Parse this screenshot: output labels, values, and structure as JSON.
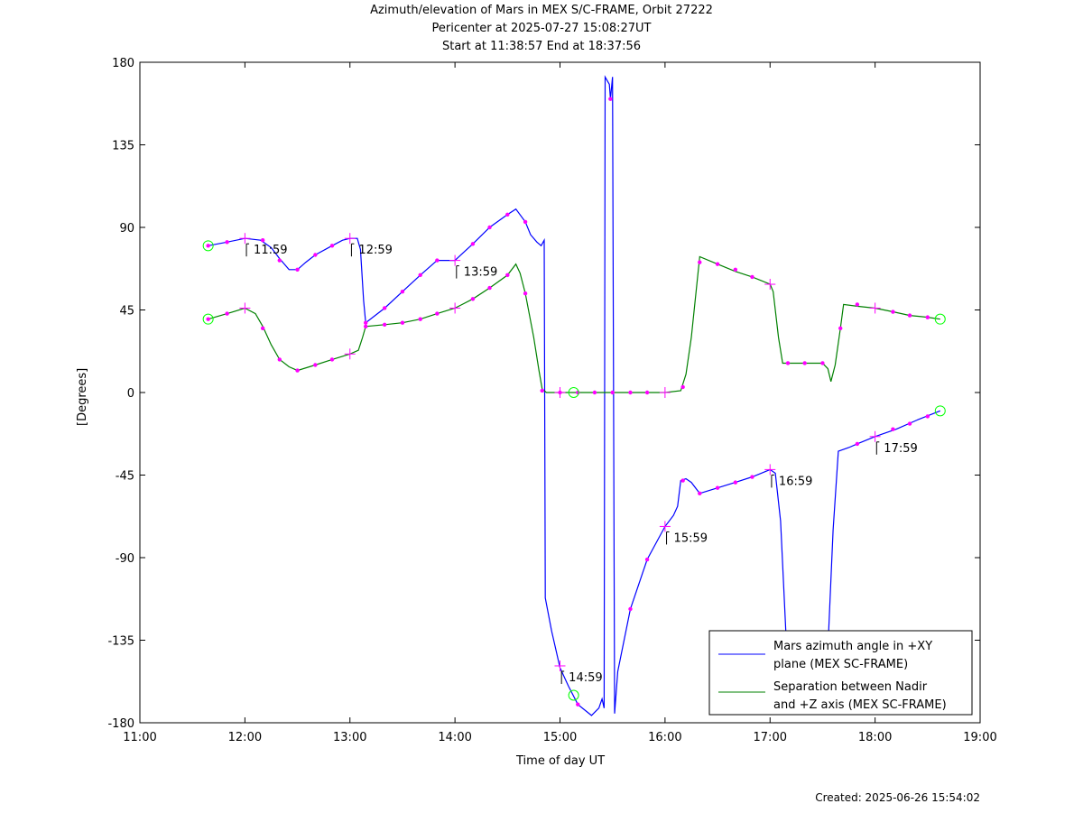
{
  "title": {
    "line1": "Azimuth/elevation of Mars in MEX S/C-FRAME,  Orbit 27222",
    "line2": "Pericenter at 2025-07-27 15:08:27UT",
    "line3": "Start at 11:38:57 End at 18:37:56"
  },
  "footer": {
    "created": "Created: 2025-06-26 15:54:02"
  },
  "chart_data": {
    "type": "line",
    "xlabel": "Time of day UT",
    "ylabel": "[Degrees]",
    "xlim": [
      11.0,
      19.0
    ],
    "ylim": [
      -180,
      180
    ],
    "x_ticks": [
      "11:00",
      "12:00",
      "13:00",
      "14:00",
      "15:00",
      "16:00",
      "17:00",
      "18:00",
      "19:00"
    ],
    "y_ticks": [
      "180",
      "135",
      "90",
      "45",
      "0",
      "-45",
      "-90",
      "-135",
      "-180"
    ],
    "grid": false,
    "legend_position": "bottom-right",
    "colors": {
      "azimuth": "#0000ff",
      "separation": "#008000",
      "marker": "#ff00ff",
      "circle": "#00ff00"
    },
    "series": [
      {
        "name": "Mars azimuth angle in +XY plane (MEX SC-FRAME)",
        "legend_lines": [
          "Mars azimuth angle in +XY",
          "plane (MEX SC-FRAME)"
        ],
        "color": "#0000ff",
        "points": [
          [
            11.65,
            80
          ],
          [
            11.83,
            82
          ],
          [
            12.0,
            84
          ],
          [
            12.15,
            83
          ],
          [
            12.25,
            79
          ],
          [
            12.33,
            73
          ],
          [
            12.42,
            67
          ],
          [
            12.5,
            67
          ],
          [
            12.58,
            71
          ],
          [
            12.67,
            75
          ],
          [
            12.83,
            80
          ],
          [
            12.93,
            83
          ],
          [
            13.0,
            84
          ],
          [
            13.07,
            84
          ],
          [
            13.1,
            78
          ],
          [
            13.13,
            50
          ],
          [
            13.15,
            38
          ],
          [
            13.33,
            46
          ],
          [
            13.5,
            55
          ],
          [
            13.67,
            64
          ],
          [
            13.83,
            72
          ],
          [
            14.0,
            72
          ],
          [
            14.17,
            81
          ],
          [
            14.33,
            90
          ],
          [
            14.5,
            97
          ],
          [
            14.58,
            100
          ],
          [
            14.67,
            93
          ],
          [
            14.72,
            86
          ],
          [
            14.78,
            82
          ],
          [
            14.82,
            80
          ],
          [
            14.85,
            83
          ],
          [
            14.86,
            -112
          ],
          [
            14.92,
            -130
          ],
          [
            15.0,
            -150
          ],
          [
            15.08,
            -160
          ],
          [
            15.17,
            -170
          ],
          [
            15.3,
            -176
          ],
          [
            15.37,
            -172
          ],
          [
            15.4,
            -167
          ],
          [
            15.42,
            -172
          ],
          [
            15.43,
            172
          ],
          [
            15.47,
            168
          ],
          [
            15.48,
            160
          ],
          [
            15.5,
            172
          ],
          [
            15.52,
            -175
          ],
          [
            15.55,
            -152
          ],
          [
            15.67,
            -118
          ],
          [
            15.83,
            -91
          ],
          [
            16.0,
            -73
          ],
          [
            16.08,
            -67
          ],
          [
            16.12,
            -62
          ],
          [
            16.15,
            -48
          ],
          [
            16.2,
            -47
          ],
          [
            16.25,
            -49
          ],
          [
            16.33,
            -55
          ],
          [
            16.5,
            -52
          ],
          [
            16.67,
            -49
          ],
          [
            16.83,
            -46
          ],
          [
            17.0,
            -42
          ],
          [
            17.05,
            -44
          ],
          [
            17.1,
            -70
          ],
          [
            17.15,
            -130
          ]
        ],
        "points2": [
          [
            17.55,
            -140
          ],
          [
            17.6,
            -75
          ],
          [
            17.65,
            -32
          ],
          [
            17.75,
            -30
          ],
          [
            17.83,
            -28
          ],
          [
            18.0,
            -24
          ],
          [
            18.2,
            -20
          ],
          [
            18.4,
            -15
          ],
          [
            18.62,
            -10
          ]
        ],
        "markers": [
          [
            11.65,
            80
          ],
          [
            11.83,
            82
          ],
          [
            12.17,
            83
          ],
          [
            12.33,
            72
          ],
          [
            12.5,
            67
          ],
          [
            12.67,
            75
          ],
          [
            12.83,
            80
          ],
          [
            13.15,
            38
          ],
          [
            13.33,
            46
          ],
          [
            13.5,
            55
          ],
          [
            13.67,
            64
          ],
          [
            13.83,
            72
          ],
          [
            14.17,
            81
          ],
          [
            14.33,
            90
          ],
          [
            14.5,
            97
          ],
          [
            14.67,
            93
          ],
          [
            15.17,
            -170
          ],
          [
            15.48,
            160
          ],
          [
            15.67,
            -118
          ],
          [
            15.83,
            -91
          ],
          [
            16.17,
            -48
          ],
          [
            16.33,
            -55
          ],
          [
            16.5,
            -52
          ],
          [
            16.67,
            -49
          ],
          [
            16.83,
            -46
          ],
          [
            17.83,
            -28
          ],
          [
            18.17,
            -20
          ],
          [
            18.33,
            -17
          ],
          [
            18.5,
            -13
          ]
        ],
        "crosses": [
          [
            12.0,
            84
          ],
          [
            13.0,
            84
          ],
          [
            14.0,
            72
          ],
          [
            15.0,
            -149
          ],
          [
            16.0,
            -73
          ],
          [
            17.0,
            -42
          ],
          [
            18.0,
            -24
          ]
        ],
        "circles": [
          [
            11.65,
            80
          ],
          [
            15.13,
            -165
          ],
          [
            18.62,
            -10
          ]
        ]
      },
      {
        "name": "Separation between Nadir and +Z axis (MEX SC-FRAME)",
        "legend_lines": [
          "Separation between Nadir",
          "and +Z axis (MEX SC-FRAME)"
        ],
        "color": "#008000",
        "points": [
          [
            11.65,
            40
          ],
          [
            11.83,
            43
          ],
          [
            12.0,
            46
          ],
          [
            12.1,
            43
          ],
          [
            12.17,
            36
          ],
          [
            12.25,
            26
          ],
          [
            12.33,
            18
          ],
          [
            12.42,
            14
          ],
          [
            12.5,
            12
          ],
          [
            12.67,
            15
          ],
          [
            12.83,
            18
          ],
          [
            13.0,
            21
          ],
          [
            13.08,
            23
          ],
          [
            13.12,
            30
          ],
          [
            13.15,
            36
          ],
          [
            13.33,
            37
          ],
          [
            13.5,
            38
          ],
          [
            13.67,
            40
          ],
          [
            13.83,
            43
          ],
          [
            14.0,
            46
          ],
          [
            14.17,
            51
          ],
          [
            14.33,
            57
          ],
          [
            14.5,
            64
          ],
          [
            14.58,
            70
          ],
          [
            14.62,
            65
          ],
          [
            14.67,
            54
          ],
          [
            14.75,
            30
          ],
          [
            14.8,
            12
          ],
          [
            14.83,
            2
          ],
          [
            14.87,
            0
          ],
          [
            15.5,
            0
          ],
          [
            16.0,
            0
          ],
          [
            16.15,
            1
          ],
          [
            16.2,
            10
          ],
          [
            16.25,
            30
          ],
          [
            16.33,
            74
          ],
          [
            16.5,
            70
          ],
          [
            16.67,
            66
          ],
          [
            16.83,
            63
          ],
          [
            17.0,
            59
          ],
          [
            17.03,
            55
          ],
          [
            17.08,
            30
          ],
          [
            17.12,
            16
          ],
          [
            17.17,
            16
          ],
          [
            17.33,
            16
          ],
          [
            17.5,
            16
          ],
          [
            17.55,
            13
          ],
          [
            17.58,
            6
          ],
          [
            17.62,
            15
          ],
          [
            17.67,
            35
          ],
          [
            17.7,
            48
          ],
          [
            17.83,
            47
          ],
          [
            18.0,
            46
          ],
          [
            18.17,
            44
          ],
          [
            18.33,
            42
          ],
          [
            18.5,
            41
          ],
          [
            18.62,
            40
          ]
        ],
        "markers": [
          [
            11.65,
            40
          ],
          [
            11.83,
            43
          ],
          [
            12.17,
            35
          ],
          [
            12.33,
            18
          ],
          [
            12.5,
            12
          ],
          [
            12.67,
            15
          ],
          [
            12.83,
            18
          ],
          [
            13.15,
            36
          ],
          [
            13.33,
            37
          ],
          [
            13.5,
            38
          ],
          [
            13.67,
            40
          ],
          [
            13.83,
            43
          ],
          [
            14.17,
            51
          ],
          [
            14.33,
            57
          ],
          [
            14.5,
            64
          ],
          [
            14.67,
            54
          ],
          [
            14.83,
            1
          ],
          [
            15.0,
            0
          ],
          [
            15.17,
            0
          ],
          [
            15.33,
            0
          ],
          [
            15.5,
            0
          ],
          [
            15.67,
            0
          ],
          [
            15.83,
            0
          ],
          [
            16.17,
            3
          ],
          [
            16.33,
            71
          ],
          [
            16.5,
            70
          ],
          [
            16.67,
            67
          ],
          [
            16.83,
            63
          ],
          [
            17.17,
            16
          ],
          [
            17.33,
            16
          ],
          [
            17.5,
            16
          ],
          [
            17.67,
            35
          ],
          [
            17.83,
            48
          ],
          [
            18.17,
            44
          ],
          [
            18.33,
            42
          ],
          [
            18.5,
            41
          ]
        ],
        "crosses": [
          [
            12.0,
            46
          ],
          [
            13.0,
            21
          ],
          [
            14.0,
            46
          ],
          [
            15.0,
            0
          ],
          [
            16.0,
            0
          ],
          [
            17.0,
            59
          ],
          [
            18.0,
            46
          ]
        ],
        "circles": [
          [
            11.65,
            40
          ],
          [
            15.13,
            0
          ],
          [
            18.62,
            40
          ]
        ]
      }
    ],
    "annotations": [
      {
        "text": "11:59",
        "x": 11.98,
        "y": 84
      },
      {
        "text": "12:59",
        "x": 12.98,
        "y": 84
      },
      {
        "text": "13:59",
        "x": 13.98,
        "y": 72
      },
      {
        "text": "14:59",
        "x": 14.98,
        "y": -149
      },
      {
        "text": "15:59",
        "x": 15.98,
        "y": -73
      },
      {
        "text": "16:59",
        "x": 16.98,
        "y": -42
      },
      {
        "text": "17:59",
        "x": 17.98,
        "y": -24
      }
    ]
  }
}
